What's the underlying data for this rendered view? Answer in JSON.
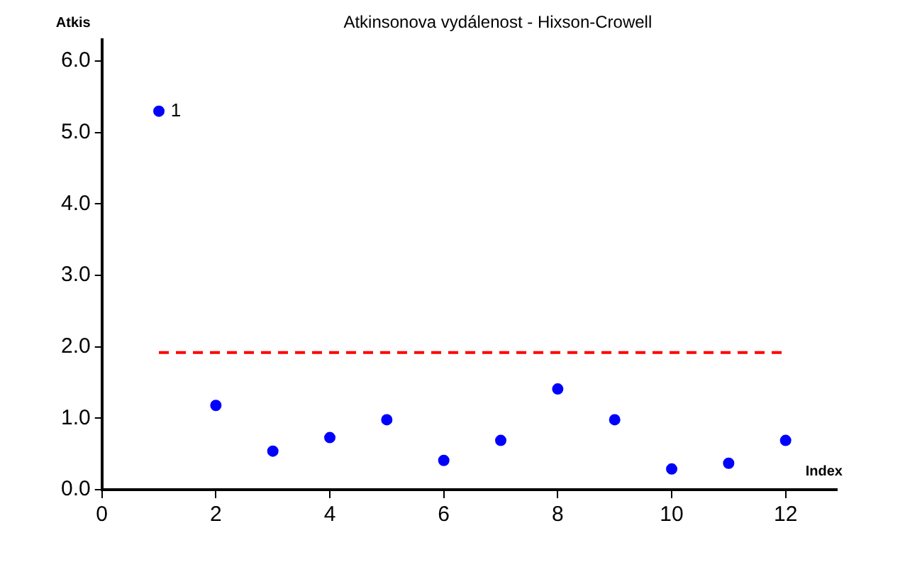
{
  "chart_data": {
    "type": "scatter",
    "title": "Atkinsonova vydálenost - Hixson-Crowell",
    "xlabel": "Index",
    "ylabel": "Atkis",
    "x": [
      1,
      2,
      3,
      4,
      5,
      6,
      7,
      8,
      9,
      10,
      11,
      12
    ],
    "series": [
      {
        "color": "#0000ff",
        "values": [
          5.3,
          1.18,
          0.54,
          0.73,
          0.98,
          0.41,
          0.69,
          1.41,
          0.98,
          0.29,
          0.37,
          0.69
        ]
      }
    ],
    "annotations": [
      {
        "text": "1",
        "x": 1,
        "y": 5.3
      }
    ],
    "ref_lines": [
      {
        "axis": "y",
        "value": 1.92,
        "color": "#ff0000",
        "line_style": "dashed"
      }
    ],
    "xlim": [
      0,
      12.9
    ],
    "xticks": [
      0,
      2,
      4,
      6,
      8,
      10,
      12
    ],
    "ylim": [
      0,
      6.3
    ],
    "yticks": [
      {
        "value": 0,
        "label": "0.0"
      },
      {
        "value": 1,
        "label": "1.0"
      },
      {
        "value": 2,
        "label": "2.0"
      },
      {
        "value": 3,
        "label": "3.0"
      },
      {
        "value": 4,
        "label": "4.0"
      },
      {
        "value": 5,
        "label": "5.0"
      },
      {
        "value": 6,
        "label": "6.0"
      }
    ],
    "grid": false,
    "legend": false,
    "marker": "circle"
  }
}
